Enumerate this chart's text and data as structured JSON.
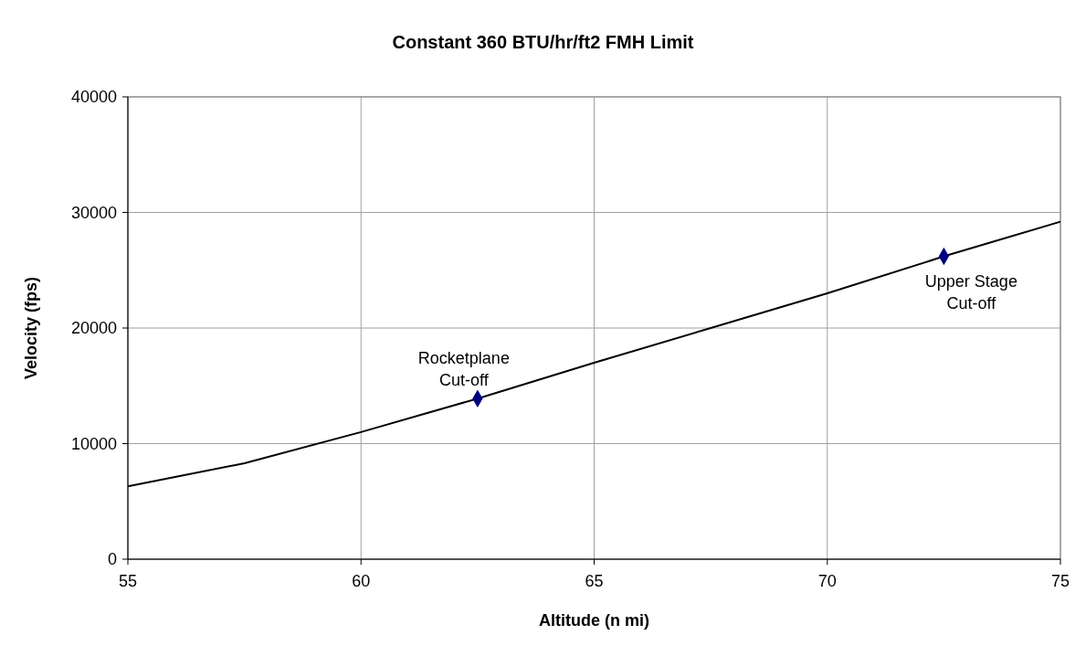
{
  "chart_data": {
    "type": "line",
    "title": "Constant 360 BTU/hr/ft2 FMH Limit",
    "xlabel": "Altitude (n mi)",
    "ylabel": "Velocity (fps)",
    "xlim": [
      55,
      75
    ],
    "xticks": [
      55,
      60,
      65,
      70,
      75
    ],
    "ylim": [
      0,
      40000
    ],
    "yticks": [
      0,
      10000,
      20000,
      30000,
      40000
    ],
    "grid": true,
    "series": [
      {
        "color": "#000000",
        "marker": "none",
        "x": [
          55,
          57.5,
          60,
          62.5,
          65,
          67.5,
          70,
          72.5,
          75
        ],
        "values": [
          6300,
          8300,
          11000,
          13900,
          17000,
          20000,
          23000,
          26200,
          29200
        ]
      },
      {
        "type": "scatter",
        "color": "#000080",
        "marker": "diamond",
        "x": [
          62.5,
          72.5
        ],
        "values": [
          13900,
          26200
        ]
      }
    ],
    "annotations": [
      {
        "text": "Rocketplane\nCut-off",
        "x": 62.5,
        "y": 13900
      },
      {
        "text": "Upper Stage\nCut-off",
        "x": 72.5,
        "y": 26200
      }
    ]
  }
}
